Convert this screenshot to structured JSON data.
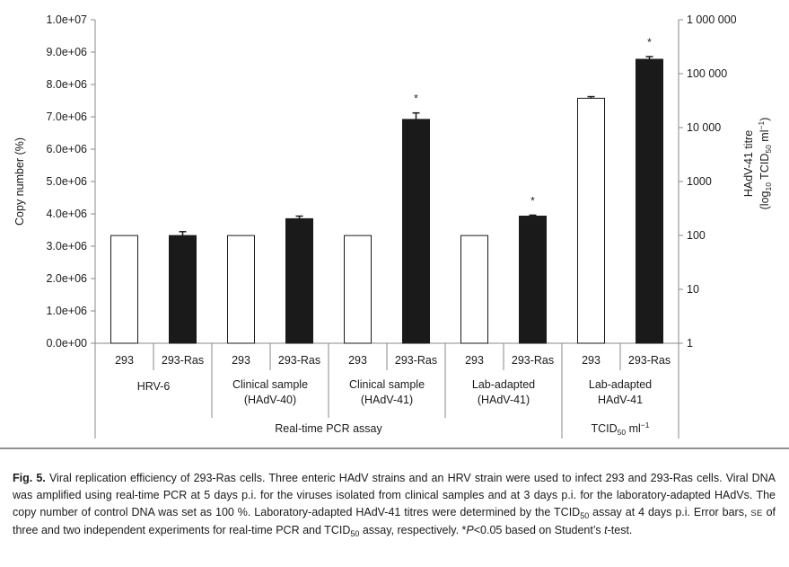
{
  "chart_data": {
    "type": "bar",
    "left_axis": {
      "label": "Copy number (%)",
      "ylim": [
        0,
        10000000
      ],
      "tick_labels": [
        "0.0e+00",
        "1.0e+06",
        "2.0e+06",
        "3.0e+06",
        "4.0e+06",
        "5.0e+06",
        "6.0e+06",
        "7.0e+06",
        "8.0e+06",
        "9.0e+06",
        "1.0e+07"
      ],
      "tick_values": [
        0,
        1000000,
        2000000,
        3000000,
        4000000,
        5000000,
        6000000,
        7000000,
        8000000,
        9000000,
        10000000
      ]
    },
    "right_axis": {
      "label_line1": "HAdV-41 titre",
      "label_line2_pre": "(log",
      "label_line2_sub1": "10",
      "label_line2_mid": " TCID",
      "label_line2_sub2": "50",
      "label_line2_post": " ml",
      "label_line2_sup": "−1",
      "label_line2_end": ")",
      "scale": "log",
      "ylim": [
        1,
        1000000
      ],
      "tick_labels": [
        "1",
        "10",
        "100",
        "1000",
        "10 000",
        "100 000",
        "1 000 000"
      ],
      "tick_values": [
        1,
        10,
        100,
        1000,
        10000,
        100000,
        1000000
      ]
    },
    "groups": [
      {
        "label_lines": [
          "HRV-6"
        ],
        "axis": "left",
        "bars": [
          {
            "category": "293",
            "cell": "293",
            "value": 3330000,
            "error": 0,
            "star": ""
          },
          {
            "category": "293-Ras",
            "cell": "293-Ras",
            "value": 3330000,
            "error": 120000,
            "star": ""
          }
        ]
      },
      {
        "label_lines": [
          "Clinical sample",
          "(HAdV-40)"
        ],
        "axis": "left",
        "bars": [
          {
            "category": "293",
            "cell": "293",
            "value": 3330000,
            "error": 0,
            "star": ""
          },
          {
            "category": "293-Ras",
            "cell": "293-Ras",
            "value": 3850000,
            "error": 80000,
            "star": ""
          }
        ]
      },
      {
        "label_lines": [
          "Clinical sample",
          "(HAdV-41)"
        ],
        "axis": "left",
        "bars": [
          {
            "category": "293",
            "cell": "293",
            "value": 3330000,
            "error": 0,
            "star": ""
          },
          {
            "category": "293-Ras",
            "cell": "293-Ras",
            "value": 6920000,
            "error": 200000,
            "star": "*"
          }
        ]
      },
      {
        "label_lines": [
          "Lab-adapted",
          "(HAdV-41)"
        ],
        "axis": "left",
        "bars": [
          {
            "category": "293",
            "cell": "293",
            "value": 3330000,
            "error": 0,
            "star": ""
          },
          {
            "category": "293-Ras",
            "cell": "293-Ras",
            "value": 3930000,
            "error": 30000,
            "star": "*"
          }
        ]
      },
      {
        "label_lines": [
          "Lab-adapted",
          "HAdV-41"
        ],
        "axis": "right",
        "bars": [
          {
            "category": "293",
            "cell": "293",
            "value": 35000,
            "error_log": 0.03,
            "star": ""
          },
          {
            "category": "293-Ras",
            "cell": "293-Ras",
            "value": 185000,
            "error_log": 0.05,
            "star": "*"
          }
        ]
      }
    ],
    "section_labels": {
      "pcr": "Real-time PCR assay",
      "tcid_pre": "TCID",
      "tcid_sub": "50",
      "tcid_post": " ml",
      "tcid_sup": "−1"
    },
    "colors": {
      "bar_293": "#ffffff",
      "bar_293ras": "#1a1a1a",
      "outline": "#1a1a1a"
    }
  },
  "caption": {
    "fig_label": "Fig. 5.",
    "t1": " Viral replication efficiency of 293-Ras cells. Three enteric HAdV strains and an HRV strain were used to infect 293 and 293-Ras cells. Viral DNA was amplified using real-time PCR at 5 days p.i. for the viruses isolated from clinical samples and at 3 days p.i. for the laboratory-adapted HAdVs. The copy number of control DNA was set as 100 %. Laboratory-adapted HAdV-41 titres were determined by the TCID",
    "sub1": "50",
    "t2": " assay at 4 days p.i. Error bars, ",
    "se": "SE",
    "t3": " of three and two independent experiments for real-time PCR and TCID",
    "sub2": "50",
    "t4": " assay, respectively. *",
    "p": "P",
    "t5": "<0.05 based on Student’s ",
    "t_italic": "t",
    "t6": "-test."
  }
}
